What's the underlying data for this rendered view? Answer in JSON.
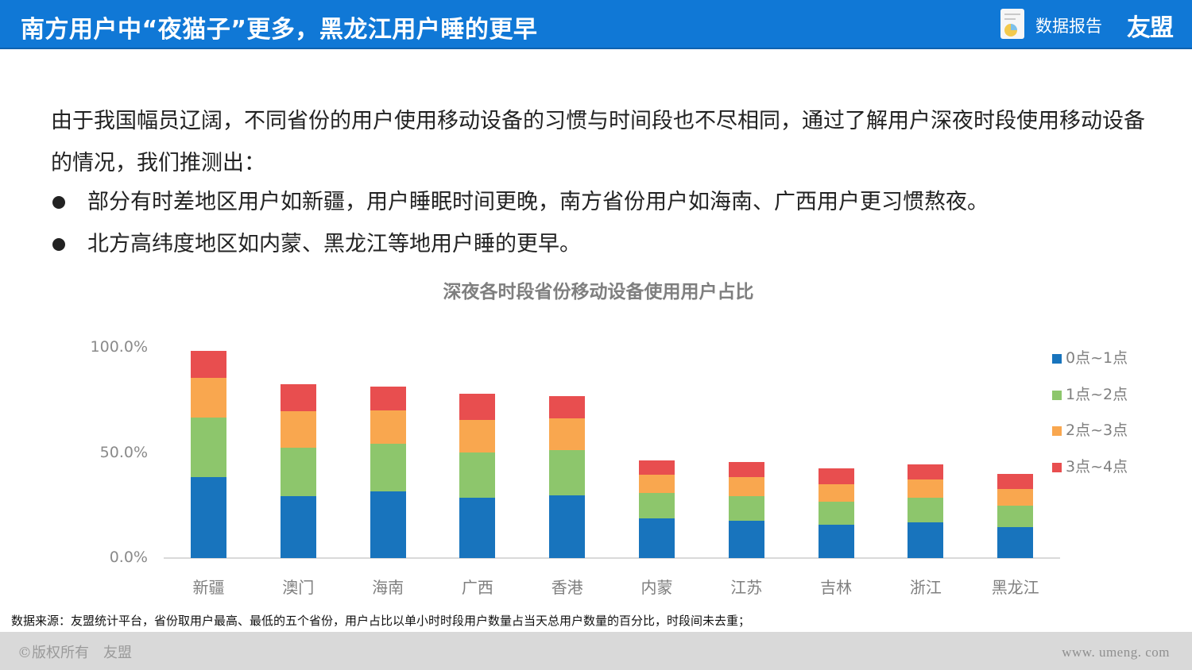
{
  "header": {
    "title": "南方用户中“夜猫子”更多，黑龙江用户睡的更早",
    "report_label": "数据报告",
    "brand": "友盟",
    "icon": "report-document-icon",
    "background_color": "#1078d6"
  },
  "intro": {
    "text": "由于我国幅员辽阔，不同省份的用户使用移动设备的习惯与时间段也不尽相同，通过了解用户深夜时段使用移动设备的情况，我们推测出："
  },
  "bullets": [
    {
      "text": "部分有时差地区用户如新疆，用户睡眠时间更晚，南方省份用户如海南、广西用户更习惯熬夜。"
    },
    {
      "text": "北方高纬度地区如内蒙、黑龙江等地用户睡的更早。"
    }
  ],
  "chart_data": {
    "type": "bar",
    "stacked": true,
    "title": "深夜各时段省份移动设备使用用户占比",
    "xlabel": "",
    "ylabel": "",
    "ylim": [
      0,
      100
    ],
    "y_ticks": [
      "100.0%",
      "50.0%",
      "0.0%"
    ],
    "grid": false,
    "legend_position": "right",
    "categories": [
      "新疆",
      "澳门",
      "海南",
      "广西",
      "香港",
      "内蒙",
      "江苏",
      "吉林",
      "浙江",
      "黑龙江"
    ],
    "series": [
      {
        "name": "0点~1点",
        "color": "#1874bd",
        "values": [
          38.3,
          29.3,
          31.6,
          28.6,
          29.7,
          18.8,
          17.7,
          15.8,
          16.9,
          14.7
        ]
      },
      {
        "name": "1点~2点",
        "color": "#8dc66c",
        "values": [
          28.2,
          22.9,
          22.6,
          21.4,
          21.4,
          12.0,
          11.7,
          10.9,
          11.7,
          10.2
        ]
      },
      {
        "name": "2点~3点",
        "color": "#f9a74f",
        "values": [
          18.8,
          17.3,
          15.8,
          15.4,
          15.0,
          8.6,
          9.0,
          8.3,
          8.6,
          7.9
        ]
      },
      {
        "name": "3点~4点",
        "color": "#e84e4f",
        "values": [
          12.8,
          12.8,
          11.3,
          12.4,
          10.5,
          6.8,
          7.1,
          7.5,
          7.1,
          7.1
        ]
      }
    ]
  },
  "source_note": "数据来源：友盟统计平台，省份取用户最高、最低的五个省份，用户占比以单小时时段用户数量占当天总用户数量的百分比，时段间未去重；",
  "footer": {
    "copyright": "©版权所有　友盟",
    "website": "www. umeng. com"
  }
}
